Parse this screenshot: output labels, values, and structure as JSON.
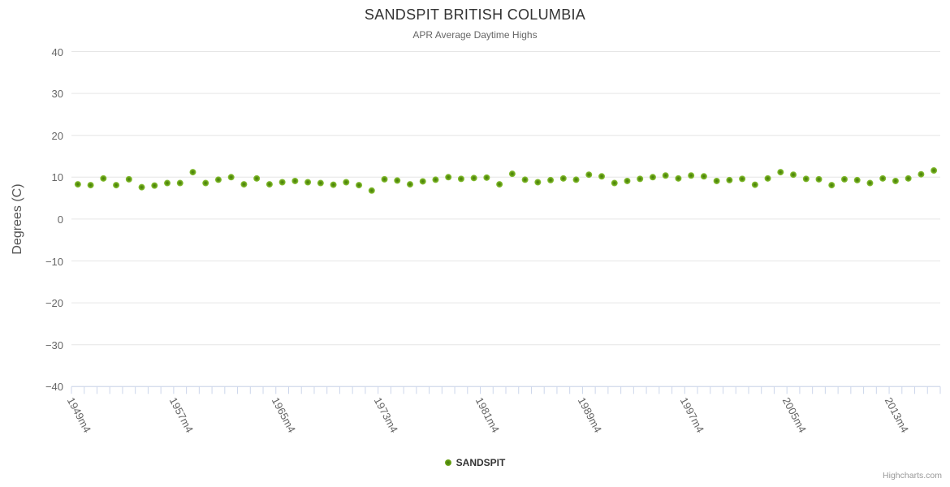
{
  "header": {
    "title": "SANDSPIT BRITISH COLUMBIA",
    "subtitle": "APR Average Daytime Highs"
  },
  "y_axis": {
    "title": "Degrees (C)",
    "min": -40,
    "max": 40,
    "tick_interval": 10,
    "tick_values": [
      40,
      30,
      20,
      10,
      0,
      -10,
      -20,
      -30,
      -40
    ],
    "tick_labels": [
      "40",
      "30",
      "20",
      "10",
      "0",
      "−10",
      "−20",
      "−30",
      "−40"
    ]
  },
  "x_axis": {
    "label_step": 8,
    "visible_labels": [
      "1949m4",
      "1957m4",
      "1965m4",
      "1973m4",
      "1981m4",
      "1989m4",
      "1997m4",
      "2005m4",
      "2013m4"
    ]
  },
  "legend": {
    "series_label": "SANDSPIT"
  },
  "credits": {
    "text": "Highcharts.com"
  },
  "colors": {
    "grid": "#e6e6e6",
    "axis": "#ccd6eb",
    "marker_center": "#3f7a0e",
    "marker_mid": "#61990f",
    "marker_edge": "#8dc63f"
  },
  "chart_data": {
    "type": "scatter",
    "title": "SANDSPIT BRITISH COLUMBIA",
    "subtitle": "APR Average Daytime Highs",
    "xlabel": "",
    "ylabel": "Degrees (C)",
    "ylim": [
      -40,
      40
    ],
    "grid": true,
    "legend_position": "bottom",
    "categories": [
      "1949m4",
      "1950m4",
      "1951m4",
      "1952m4",
      "1953m4",
      "1954m4",
      "1955m4",
      "1956m4",
      "1957m4",
      "1958m4",
      "1959m4",
      "1960m4",
      "1961m4",
      "1962m4",
      "1963m4",
      "1964m4",
      "1965m4",
      "1966m4",
      "1967m4",
      "1968m4",
      "1969m4",
      "1970m4",
      "1971m4",
      "1972m4",
      "1973m4",
      "1974m4",
      "1975m4",
      "1976m4",
      "1977m4",
      "1978m4",
      "1979m4",
      "1980m4",
      "1981m4",
      "1982m4",
      "1983m4",
      "1984m4",
      "1985m4",
      "1986m4",
      "1987m4",
      "1988m4",
      "1989m4",
      "1990m4",
      "1991m4",
      "1992m4",
      "1993m4",
      "1994m4",
      "1995m4",
      "1996m4",
      "1997m4",
      "1998m4",
      "1999m4",
      "2000m4",
      "2001m4",
      "2002m4",
      "2003m4",
      "2004m4",
      "2005m4",
      "2006m4",
      "2007m4",
      "2008m4",
      "2009m4",
      "2010m4",
      "2011m4",
      "2012m4",
      "2013m4",
      "2014m4",
      "2015m4",
      "2016m4"
    ],
    "series": [
      {
        "name": "SANDSPIT",
        "color": "#7db32b",
        "values": [
          8.3,
          8.1,
          9.7,
          8.1,
          9.5,
          7.6,
          8.0,
          8.6,
          8.6,
          11.2,
          8.6,
          9.4,
          10.0,
          8.3,
          9.7,
          8.3,
          8.8,
          9.1,
          8.8,
          8.6,
          8.2,
          8.8,
          8.1,
          6.8,
          9.5,
          9.2,
          8.3,
          9.0,
          9.4,
          10.0,
          9.6,
          9.8,
          9.9,
          8.3,
          10.8,
          9.4,
          8.8,
          9.3,
          9.7,
          9.4,
          10.6,
          10.2,
          8.6,
          9.1,
          9.6,
          10.0,
          10.4,
          9.7,
          10.4,
          10.2,
          9.1,
          9.3,
          9.6,
          8.2,
          9.7,
          11.2,
          10.6,
          9.6,
          9.5,
          8.1,
          9.5,
          9.3,
          8.6,
          9.7,
          9.1,
          9.7,
          10.7,
          11.6
        ]
      }
    ]
  }
}
